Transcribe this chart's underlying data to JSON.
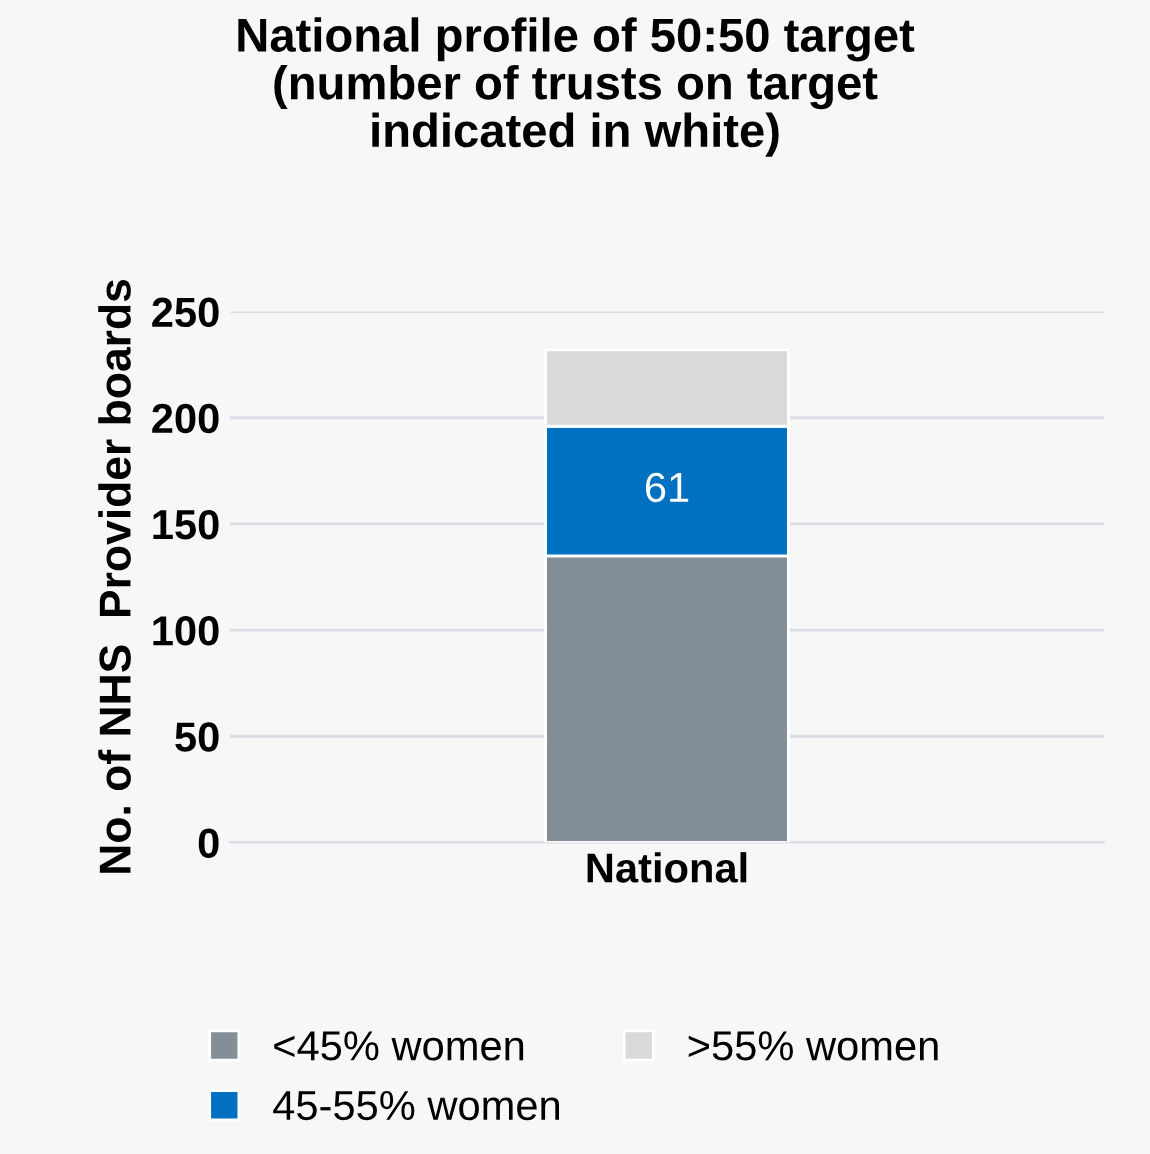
{
  "chart_data": {
    "type": "bar",
    "title": "National profile of 50:50 target\n(number of trusts on target\nindicated in white)",
    "ylabel": "No. of NHS  Provider boards",
    "categories": [
      "National"
    ],
    "stacked": true,
    "series": [
      {
        "name": "<45% women",
        "color": "#848e99",
        "values": [
          135
        ],
        "value_labels": [
          null
        ]
      },
      {
        "name": "45-55% women",
        "color": "#0070c0",
        "values": [
          61
        ],
        "value_labels": [
          "61"
        ]
      },
      {
        "name": ">55% women",
        "color": "#d9d9d9",
        "values": [
          36
        ],
        "value_labels": [
          null
        ]
      }
    ],
    "ylim": [
      0,
      250
    ],
    "yticks": [
      0,
      50,
      100,
      150,
      200,
      250
    ],
    "grid": "y",
    "legend": "bottom"
  }
}
